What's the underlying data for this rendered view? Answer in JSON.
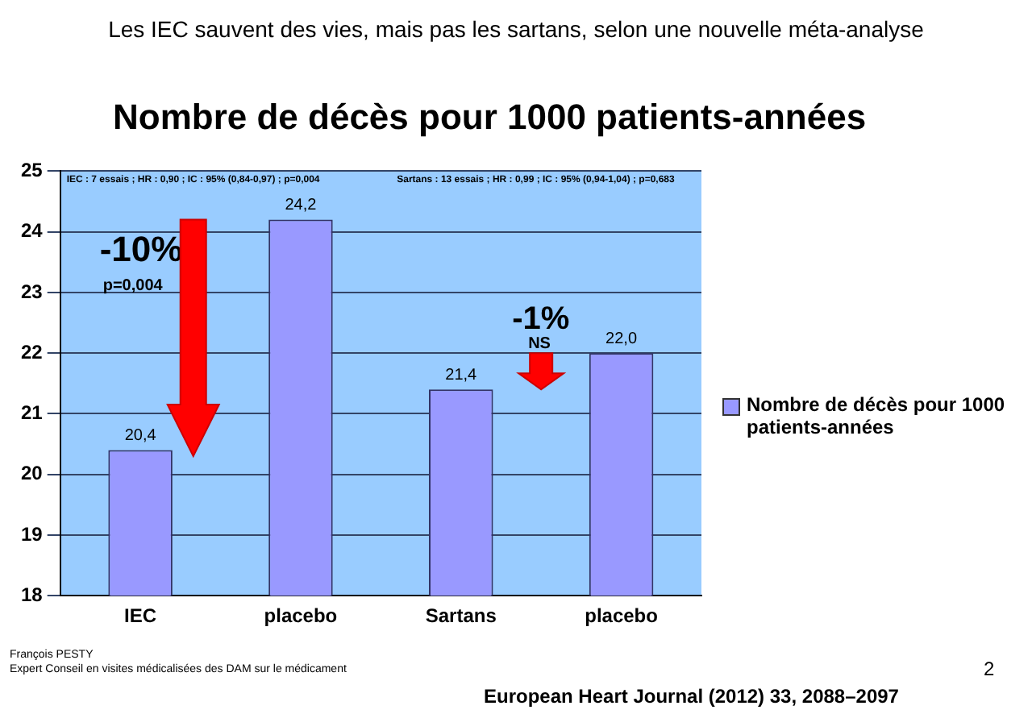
{
  "chart_data": {
    "type": "bar",
    "subtitle": "Les IEC sauvent des vies, mais pas les sartans, selon une nouvelle méta-analyse",
    "title": "Nombre de décès pour 1000 patients-années",
    "categories": [
      "IEC",
      "placebo",
      "Sartans",
      "placebo"
    ],
    "series": [
      {
        "name": "Nombre de décès pour 1000 patients-années",
        "color": "#9999ff",
        "values": [
          20.4,
          24.2,
          21.4,
          22.0
        ],
        "value_labels": [
          "20,4",
          "24,2",
          "21,4",
          "22,0"
        ]
      }
    ],
    "ylim": [
      18,
      25
    ],
    "yticks": [
      18,
      19,
      20,
      21,
      22,
      23,
      24,
      25
    ],
    "grid": "y",
    "legend": "right",
    "annotations": [
      "IEC : 7 essais ; HR : 0,90 ; IC : 95% (0,84-0,97) ; p=0,004",
      "Sartans : 13 essais ; HR : 0,99 ; IC : 95% (0,94-1,04) ; p=0,683",
      "-10%",
      "p=0,004",
      "-1%",
      "NS",
      "François PESTY",
      "Expert Conseil en visites médicalisées des DAM sur le médicament",
      "2",
      "European Heart Journal (2012) 33, 2088–2097"
    ]
  }
}
